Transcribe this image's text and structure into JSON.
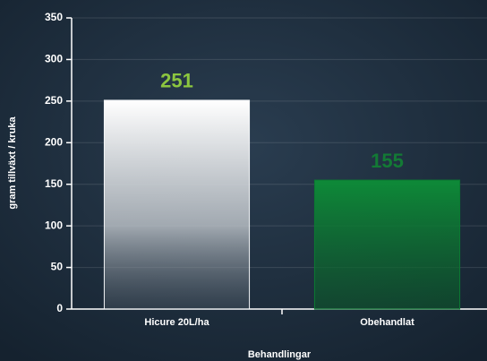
{
  "chart_data": {
    "type": "bar",
    "categories": [
      "Hicure 20L/ha",
      "Obehandlat"
    ],
    "values": [
      251,
      155
    ],
    "colors": [
      "#f4f6f8",
      "#0b7a32"
    ],
    "label_colors": [
      "#8cc63f",
      "#137a35"
    ],
    "ylabel": "gram tillväxt / kruka",
    "xlabel": "Behandlingar",
    "ylim": [
      0,
      350
    ],
    "yticks": [
      0,
      50,
      100,
      150,
      200,
      250,
      300,
      350
    ],
    "grid": true
  }
}
